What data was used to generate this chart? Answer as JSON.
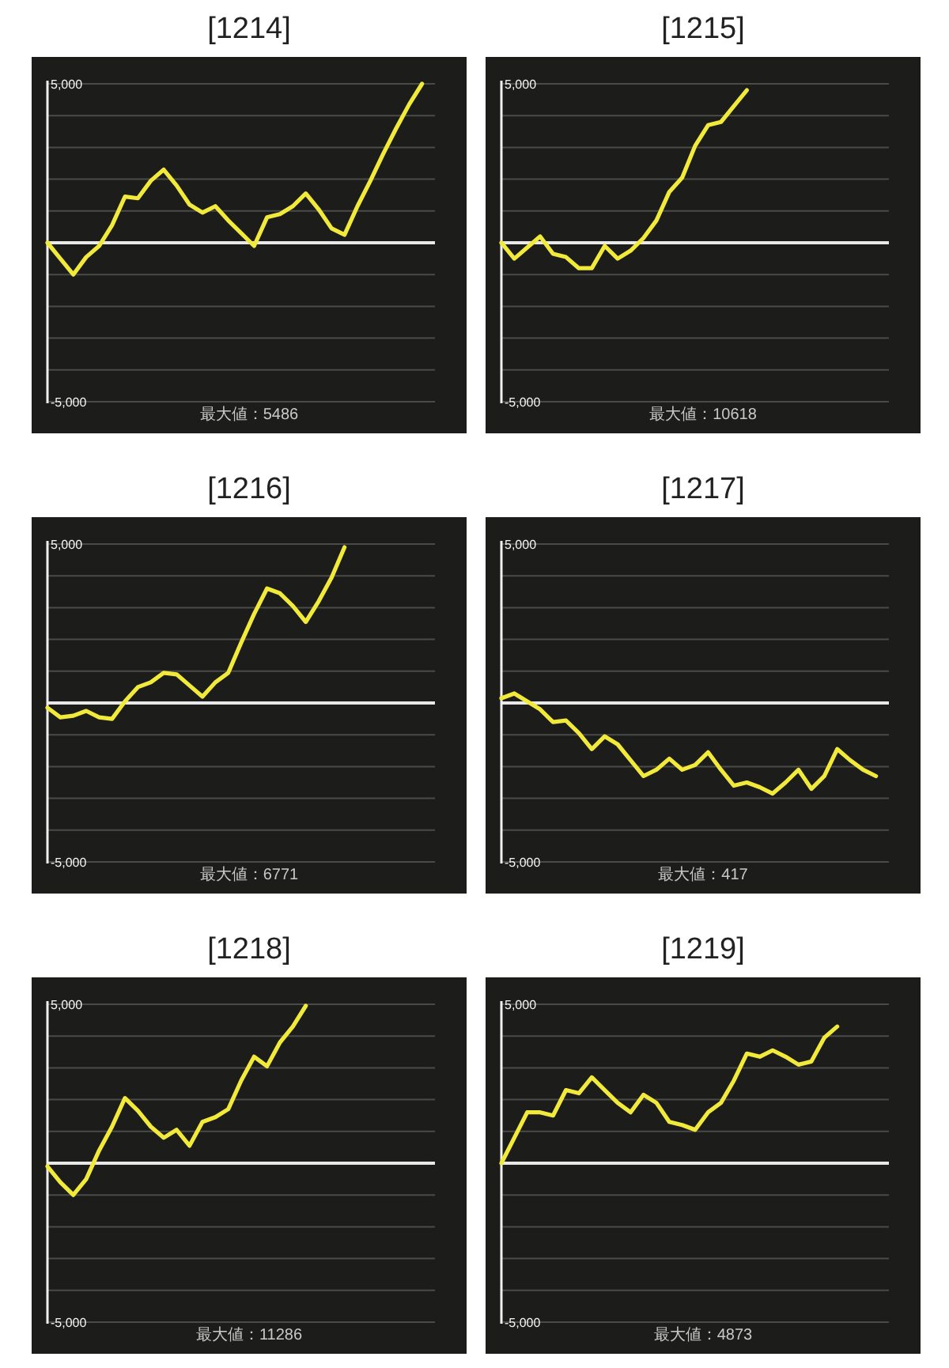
{
  "chart_data": [
    {
      "type": "line",
      "title": "[1214]",
      "annotations": [
        "最大値：5486"
      ],
      "categories": [
        null,
        null,
        null,
        null,
        null,
        null,
        null,
        null,
        null,
        null,
        null,
        null,
        null,
        null,
        null,
        null,
        null,
        null,
        null,
        null,
        null,
        null,
        null,
        null,
        null,
        null,
        null,
        null,
        null,
        null,
        null
      ],
      "series": [
        {
          "color": "#f2ea3a",
          "values": [
            0,
            -500,
            -1000,
            -450,
            -100,
            550,
            1450,
            1400,
            1950,
            2300,
            1800,
            1200,
            950,
            1150,
            700,
            300,
            -100,
            800,
            900,
            1150,
            1550,
            1050,
            450,
            250,
            1150,
            1950,
            2800,
            3600,
            4350,
            5000,
            null
          ]
        }
      ],
      "ylim": [
        -5000,
        5000
      ],
      "yticks": [
        {
          "value": -5000,
          "label": "-5,000"
        },
        {
          "value": -4000,
          "label": null
        },
        {
          "value": -3000,
          "label": null
        },
        {
          "value": -2000,
          "label": null
        },
        {
          "value": -1000,
          "label": null
        },
        {
          "value": 0,
          "label": null
        },
        {
          "value": 1000,
          "label": null
        },
        {
          "value": 2000,
          "label": null
        },
        {
          "value": 3000,
          "label": null
        },
        {
          "value": 4000,
          "label": null
        },
        {
          "value": 5000,
          "label": "5,000"
        }
      ],
      "grid": "y",
      "tick_labels": "y",
      "ref_lines": [
        {
          "axis": "y",
          "value": 0,
          "label": null,
          "color": "#e8e8e8"
        }
      ]
    },
    {
      "type": "line",
      "title": "[1215]",
      "annotations": [
        "最大値：10618"
      ],
      "categories": [
        null,
        null,
        null,
        null,
        null,
        null,
        null,
        null,
        null,
        null,
        null,
        null,
        null,
        null,
        null,
        null,
        null,
        null,
        null,
        null,
        null,
        null,
        null,
        null,
        null,
        null,
        null,
        null,
        null,
        null,
        null
      ],
      "series": [
        {
          "color": "#f2ea3a",
          "values": [
            0,
            -500,
            -150,
            200,
            -350,
            -450,
            -800,
            -800,
            -100,
            -500,
            -250,
            150,
            700,
            1600,
            2050,
            3050,
            3700,
            3800,
            4300,
            4800,
            null,
            null,
            null,
            null,
            null,
            null,
            null,
            null,
            null,
            null,
            null
          ]
        }
      ],
      "ylim": [
        -5000,
        5000
      ],
      "yticks": [
        {
          "value": -5000,
          "label": "-5,000"
        },
        {
          "value": -4000,
          "label": null
        },
        {
          "value": -3000,
          "label": null
        },
        {
          "value": -2000,
          "label": null
        },
        {
          "value": -1000,
          "label": null
        },
        {
          "value": 0,
          "label": null
        },
        {
          "value": 1000,
          "label": null
        },
        {
          "value": 2000,
          "label": null
        },
        {
          "value": 3000,
          "label": null
        },
        {
          "value": 4000,
          "label": null
        },
        {
          "value": 5000,
          "label": "5,000"
        }
      ],
      "grid": "y",
      "tick_labels": "y",
      "ref_lines": [
        {
          "axis": "y",
          "value": 0,
          "label": null,
          "color": "#e8e8e8"
        }
      ]
    },
    {
      "type": "line",
      "title": "[1216]",
      "annotations": [
        "最大値：6771"
      ],
      "categories": [
        null,
        null,
        null,
        null,
        null,
        null,
        null,
        null,
        null,
        null,
        null,
        null,
        null,
        null,
        null,
        null,
        null,
        null,
        null,
        null,
        null,
        null,
        null,
        null,
        null,
        null,
        null,
        null,
        null,
        null,
        null
      ],
      "series": [
        {
          "color": "#f2ea3a",
          "values": [
            -150,
            -450,
            -400,
            -250,
            -450,
            -500,
            50,
            500,
            650,
            950,
            900,
            550,
            200,
            650,
            950,
            1900,
            2800,
            3600,
            3450,
            3050,
            2550,
            3200,
            3950,
            4900,
            null,
            null,
            null,
            null,
            null,
            null,
            null
          ]
        }
      ],
      "ylim": [
        -5000,
        5000
      ],
      "yticks": [
        {
          "value": -5000,
          "label": "-5,000"
        },
        {
          "value": -4000,
          "label": null
        },
        {
          "value": -3000,
          "label": null
        },
        {
          "value": -2000,
          "label": null
        },
        {
          "value": -1000,
          "label": null
        },
        {
          "value": 0,
          "label": null
        },
        {
          "value": 1000,
          "label": null
        },
        {
          "value": 2000,
          "label": null
        },
        {
          "value": 3000,
          "label": null
        },
        {
          "value": 4000,
          "label": null
        },
        {
          "value": 5000,
          "label": "5,000"
        }
      ],
      "grid": "y",
      "tick_labels": "y",
      "ref_lines": [
        {
          "axis": "y",
          "value": 0,
          "label": null,
          "color": "#e8e8e8"
        }
      ]
    },
    {
      "type": "line",
      "title": "[1217]",
      "annotations": [
        "最大値：417"
      ],
      "categories": [
        null,
        null,
        null,
        null,
        null,
        null,
        null,
        null,
        null,
        null,
        null,
        null,
        null,
        null,
        null,
        null,
        null,
        null,
        null,
        null,
        null,
        null,
        null,
        null,
        null,
        null,
        null,
        null,
        null,
        null,
        null
      ],
      "series": [
        {
          "color": "#f2ea3a",
          "values": [
            150,
            300,
            50,
            -200,
            -600,
            -550,
            -950,
            -1450,
            -1050,
            -1300,
            -1800,
            -2300,
            -2100,
            -1750,
            -2100,
            -1950,
            -1550,
            -2100,
            -2600,
            -2500,
            -2650,
            -2850,
            -2500,
            -2100,
            -2700,
            -2300,
            -1450,
            -1800,
            -2100,
            -2300,
            null
          ]
        }
      ],
      "ylim": [
        -5000,
        5000
      ],
      "yticks": [
        {
          "value": -5000,
          "label": "-5,000"
        },
        {
          "value": -4000,
          "label": null
        },
        {
          "value": -3000,
          "label": null
        },
        {
          "value": -2000,
          "label": null
        },
        {
          "value": -1000,
          "label": null
        },
        {
          "value": 0,
          "label": null
        },
        {
          "value": 1000,
          "label": null
        },
        {
          "value": 2000,
          "label": null
        },
        {
          "value": 3000,
          "label": null
        },
        {
          "value": 4000,
          "label": null
        },
        {
          "value": 5000,
          "label": "5,000"
        }
      ],
      "grid": "y",
      "tick_labels": "y",
      "ref_lines": [
        {
          "axis": "y",
          "value": 0,
          "label": null,
          "color": "#e8e8e8"
        }
      ]
    },
    {
      "type": "line",
      "title": "[1218]",
      "annotations": [
        "最大値：11286"
      ],
      "categories": [
        null,
        null,
        null,
        null,
        null,
        null,
        null,
        null,
        null,
        null,
        null,
        null,
        null,
        null,
        null,
        null,
        null,
        null,
        null,
        null,
        null,
        null,
        null,
        null,
        null,
        null,
        null,
        null,
        null,
        null,
        null
      ],
      "series": [
        {
          "color": "#f2ea3a",
          "values": [
            -100,
            -600,
            -1000,
            -500,
            400,
            1150,
            2050,
            1650,
            1150,
            800,
            1050,
            550,
            1300,
            1450,
            1700,
            2600,
            3350,
            3050,
            3800,
            4300,
            4950,
            null,
            null,
            null,
            null,
            null,
            null,
            null,
            null,
            null,
            null
          ]
        }
      ],
      "ylim": [
        -5000,
        5000
      ],
      "yticks": [
        {
          "value": -5000,
          "label": "-5,000"
        },
        {
          "value": -4000,
          "label": null
        },
        {
          "value": -3000,
          "label": null
        },
        {
          "value": -2000,
          "label": null
        },
        {
          "value": -1000,
          "label": null
        },
        {
          "value": 0,
          "label": null
        },
        {
          "value": 1000,
          "label": null
        },
        {
          "value": 2000,
          "label": null
        },
        {
          "value": 3000,
          "label": null
        },
        {
          "value": 4000,
          "label": null
        },
        {
          "value": 5000,
          "label": "5,000"
        }
      ],
      "grid": "y",
      "tick_labels": "y",
      "ref_lines": [
        {
          "axis": "y",
          "value": 0,
          "label": null,
          "color": "#e8e8e8"
        }
      ]
    },
    {
      "type": "line",
      "title": "[1219]",
      "annotations": [
        "最大値：4873"
      ],
      "categories": [
        null,
        null,
        null,
        null,
        null,
        null,
        null,
        null,
        null,
        null,
        null,
        null,
        null,
        null,
        null,
        null,
        null,
        null,
        null,
        null,
        null,
        null,
        null,
        null,
        null,
        null,
        null,
        null,
        null,
        null,
        null
      ],
      "series": [
        {
          "color": "#f2ea3a",
          "values": [
            0,
            800,
            1600,
            1600,
            1500,
            2300,
            2200,
            2700,
            2300,
            1900,
            1600,
            2150,
            1900,
            1300,
            1200,
            1050,
            1600,
            1900,
            2600,
            3450,
            3350,
            3550,
            3350,
            3100,
            3200,
            3950,
            4300,
            null,
            null,
            null,
            null
          ]
        }
      ],
      "ylim": [
        -5000,
        5000
      ],
      "yticks": [
        {
          "value": -5000,
          "label": "-5,000"
        },
        {
          "value": -4000,
          "label": null
        },
        {
          "value": -3000,
          "label": null
        },
        {
          "value": -2000,
          "label": null
        },
        {
          "value": -1000,
          "label": null
        },
        {
          "value": 0,
          "label": null
        },
        {
          "value": 1000,
          "label": null
        },
        {
          "value": 2000,
          "label": null
        },
        {
          "value": 3000,
          "label": null
        },
        {
          "value": 4000,
          "label": null
        },
        {
          "value": 5000,
          "label": "5,000"
        }
      ],
      "grid": "y",
      "tick_labels": "y",
      "ref_lines": [
        {
          "axis": "y",
          "value": 0,
          "label": null,
          "color": "#e8e8e8"
        }
      ]
    }
  ]
}
